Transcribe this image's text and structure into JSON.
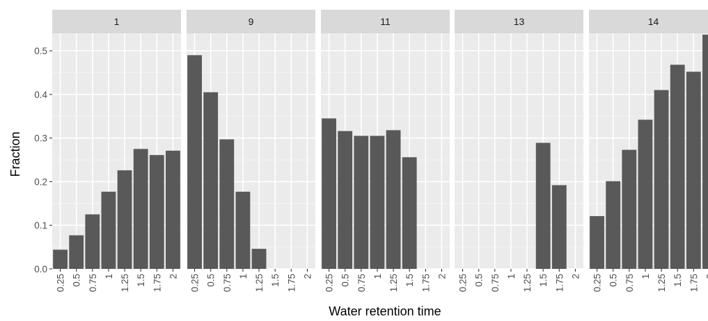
{
  "chart_data": {
    "type": "bar",
    "xlabel": "Water retention time",
    "ylabel": "Fraction",
    "ylim": [
      0,
      0.54
    ],
    "y_ticks": [
      "0.0",
      "0.1",
      "0.2",
      "0.3",
      "0.4",
      "0.5"
    ],
    "y_tick_values": [
      0,
      0.1,
      0.2,
      0.3,
      0.4,
      0.5
    ],
    "categories": [
      "0.25",
      "0.5",
      "0.75",
      "1",
      "1.25",
      "1.5",
      "1.75",
      "2"
    ],
    "grid": true,
    "bar_color": "#595959",
    "panel_background": "#ebebeb",
    "strip_background": "#d9d9d9",
    "panels": [
      {
        "label": "1",
        "values": [
          0.044,
          0.077,
          0.125,
          0.177,
          0.226,
          0.275,
          0.261,
          0.271
        ]
      },
      {
        "label": "9",
        "values": [
          0.49,
          0.405,
          0.297,
          0.177,
          0.046,
          null,
          null,
          null
        ]
      },
      {
        "label": "11",
        "values": [
          0.345,
          0.316,
          0.305,
          0.305,
          0.318,
          0.256,
          null,
          null
        ]
      },
      {
        "label": "13",
        "values": [
          null,
          null,
          null,
          null,
          null,
          0.289,
          0.192,
          null
        ]
      },
      {
        "label": "14",
        "values": [
          0.121,
          0.201,
          0.273,
          0.342,
          0.41,
          0.468,
          0.452,
          0.537
        ]
      }
    ]
  }
}
